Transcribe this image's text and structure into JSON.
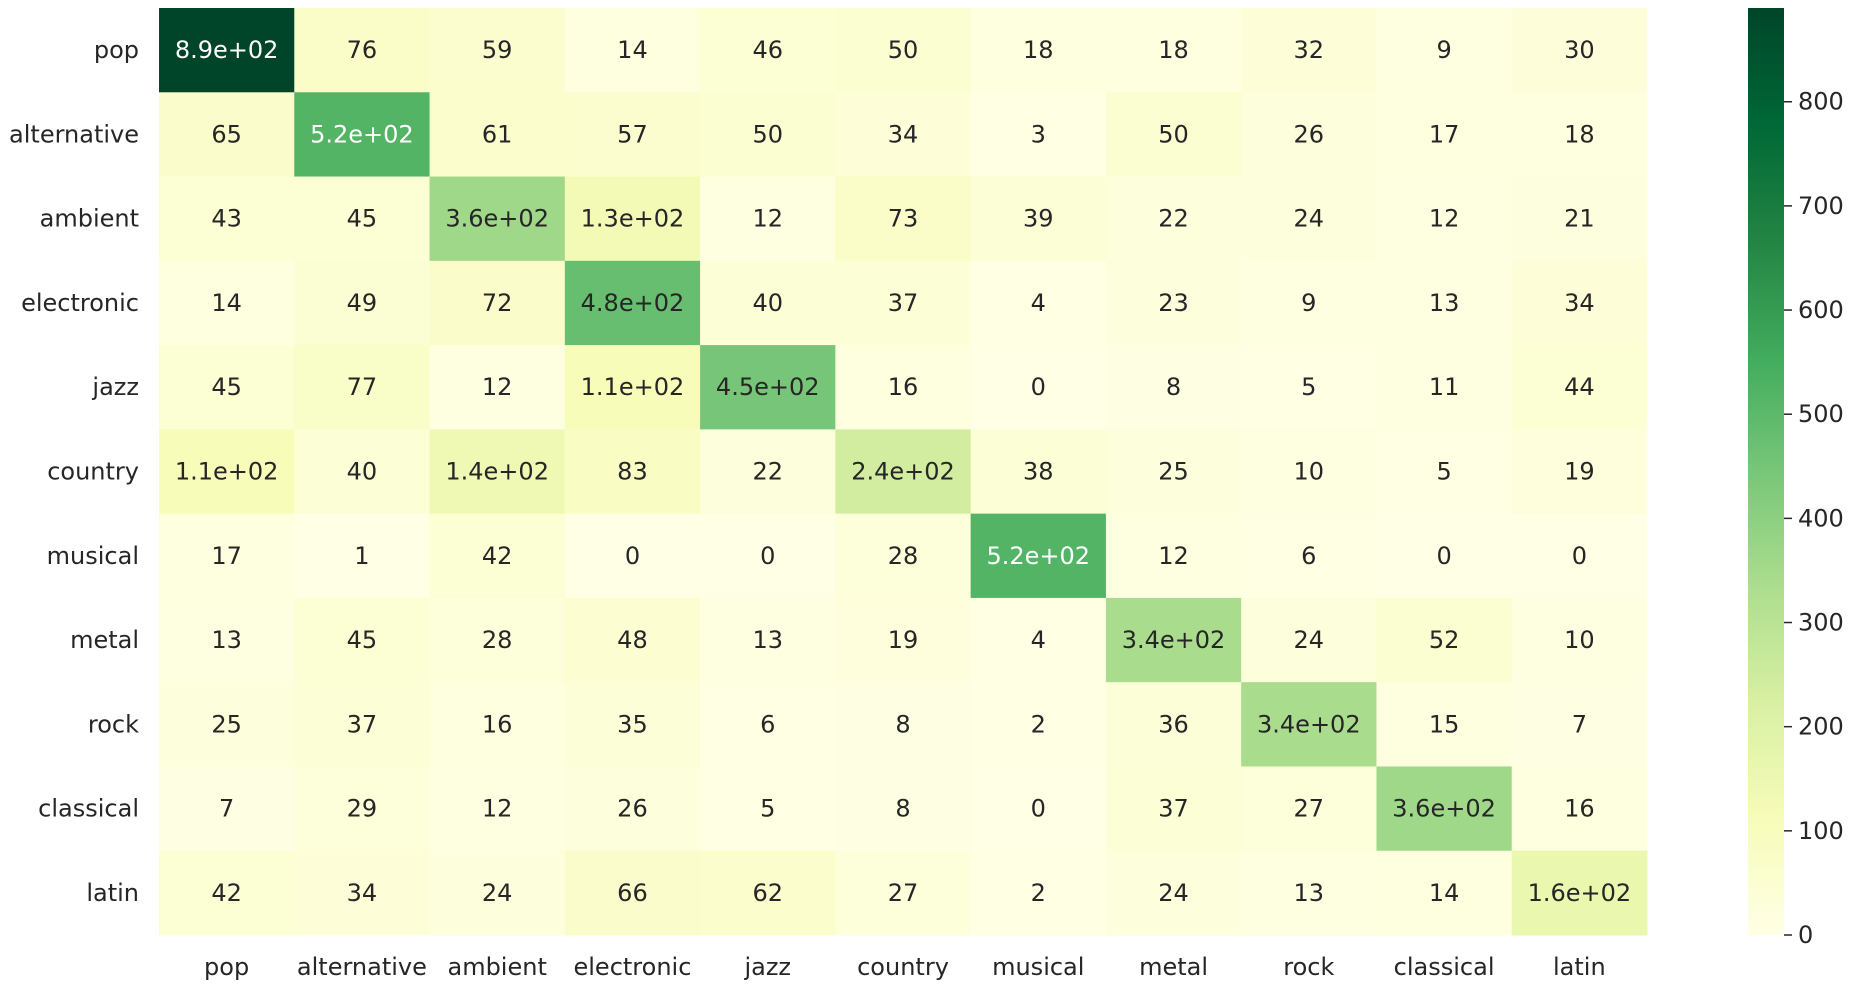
{
  "chart_data": {
    "type": "heatmap",
    "title": "",
    "xlabel": "",
    "ylabel": "",
    "row_labels": [
      "pop",
      "alternative",
      "ambient",
      "electronic",
      "jazz",
      "country",
      "musical",
      "metal",
      "rock",
      "classical",
      "latin"
    ],
    "col_labels": [
      "pop",
      "alternative",
      "ambient",
      "electronic",
      "jazz",
      "country",
      "musical",
      "metal",
      "rock",
      "classical",
      "latin"
    ],
    "values": [
      [
        890,
        76,
        59,
        14,
        46,
        50,
        18,
        18,
        32,
        9,
        30
      ],
      [
        65,
        520,
        61,
        57,
        50,
        34,
        3,
        50,
        26,
        17,
        18
      ],
      [
        43,
        45,
        360,
        130,
        12,
        73,
        39,
        22,
        24,
        12,
        21
      ],
      [
        14,
        49,
        72,
        480,
        40,
        37,
        4,
        23,
        9,
        13,
        34
      ],
      [
        45,
        77,
        12,
        110,
        450,
        16,
        0,
        8,
        5,
        11,
        44
      ],
      [
        110,
        40,
        140,
        83,
        22,
        240,
        38,
        25,
        10,
        5,
        19
      ],
      [
        17,
        1,
        42,
        0,
        0,
        28,
        520,
        12,
        6,
        0,
        0
      ],
      [
        13,
        45,
        28,
        48,
        13,
        19,
        4,
        340,
        24,
        52,
        10
      ],
      [
        25,
        37,
        16,
        35,
        6,
        8,
        2,
        36,
        340,
        15,
        7
      ],
      [
        7,
        29,
        12,
        26,
        5,
        8,
        0,
        37,
        27,
        360,
        16
      ],
      [
        42,
        34,
        24,
        66,
        62,
        27,
        2,
        24,
        13,
        14,
        160
      ]
    ],
    "annotations": [
      [
        "8.9e+02",
        "76",
        "59",
        "14",
        "46",
        "50",
        "18",
        "18",
        "32",
        "9",
        "30"
      ],
      [
        "65",
        "5.2e+02",
        "61",
        "57",
        "50",
        "34",
        "3",
        "50",
        "26",
        "17",
        "18"
      ],
      [
        "43",
        "45",
        "3.6e+02",
        "1.3e+02",
        "12",
        "73",
        "39",
        "22",
        "24",
        "12",
        "21"
      ],
      [
        "14",
        "49",
        "72",
        "4.8e+02",
        "40",
        "37",
        "4",
        "23",
        "9",
        "13",
        "34"
      ],
      [
        "45",
        "77",
        "12",
        "1.1e+02",
        "4.5e+02",
        "16",
        "0",
        "8",
        "5",
        "11",
        "44"
      ],
      [
        "1.1e+02",
        "40",
        "1.4e+02",
        "83",
        "22",
        "2.4e+02",
        "38",
        "25",
        "10",
        "5",
        "19"
      ],
      [
        "17",
        "1",
        "42",
        "0",
        "0",
        "28",
        "5.2e+02",
        "12",
        "6",
        "0",
        "0"
      ],
      [
        "13",
        "45",
        "28",
        "48",
        "13",
        "19",
        "4",
        "3.4e+02",
        "24",
        "52",
        "10"
      ],
      [
        "25",
        "37",
        "16",
        "35",
        "6",
        "8",
        "2",
        "36",
        "3.4e+02",
        "15",
        "7"
      ],
      [
        "7",
        "29",
        "12",
        "26",
        "5",
        "8",
        "0",
        "37",
        "27",
        "3.6e+02",
        "16"
      ],
      [
        "42",
        "34",
        "24",
        "66",
        "62",
        "27",
        "2",
        "24",
        "13",
        "14",
        "1.6e+02"
      ]
    ],
    "colorbar": {
      "min": 0,
      "max": 890,
      "ticks": [
        0,
        100,
        200,
        300,
        400,
        500,
        600,
        700,
        800
      ],
      "colormap": "YlGn-like",
      "colors": [
        "#ffffe5",
        "#f7fcb9",
        "#d9f0a3",
        "#addd8e",
        "#78c679",
        "#41ab5d",
        "#238443",
        "#006837",
        "#004529"
      ]
    }
  }
}
